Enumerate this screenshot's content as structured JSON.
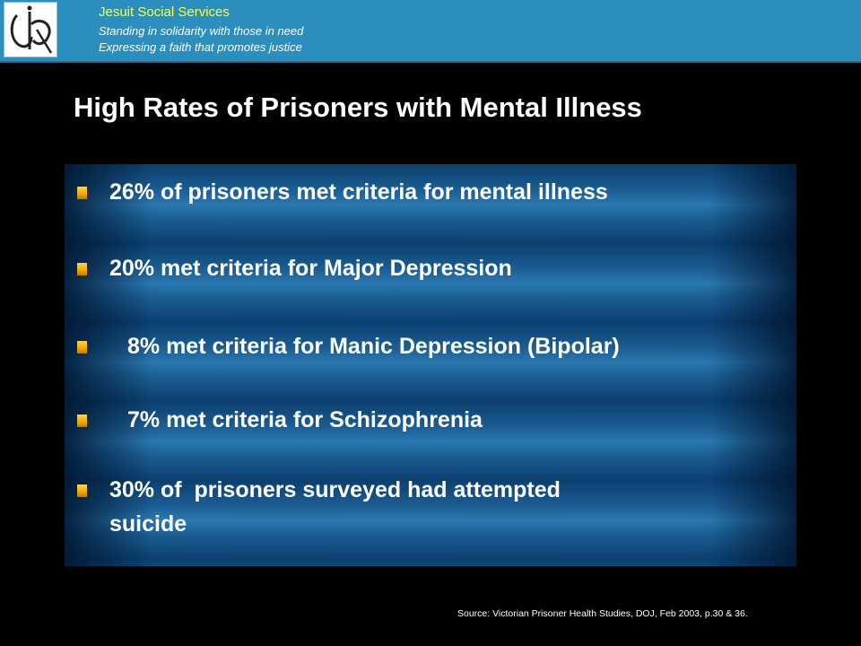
{
  "header": {
    "org_name": "Jesuit Social Services",
    "tagline_1": "Standing in solidarity with those in need",
    "tagline_2": "Expressing a faith that promotes justice",
    "logo_icon": "jss-monogram-icon",
    "bar_color": "#2a8fbf",
    "org_name_color": "#ffff33"
  },
  "slide": {
    "title": "High Rates of Prisoners with Mental Illness",
    "bullets": [
      {
        "text": "26% of prisoners met criteria for mental illness"
      },
      {
        "text": "20% met criteria for Major Depression"
      },
      {
        "text": "8% met criteria for Manic Depression (Bipolar)"
      },
      {
        "text": "7% met criteria for Schizophrenia"
      },
      {
        "line1": "30% of  prisoners surveyed had attempted",
        "line2": "suicide"
      }
    ],
    "bullet_color": "#f2a900",
    "panel_color": "#1c5f95"
  },
  "footer": {
    "source": "Source: Victorian Prisoner Health Studies, DOJ, Feb 2003, p.30 & 36."
  }
}
